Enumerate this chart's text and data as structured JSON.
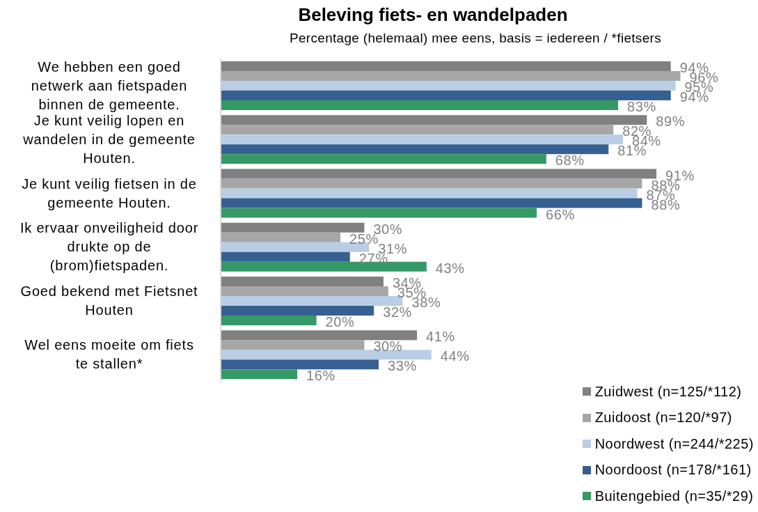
{
  "chart_data": {
    "type": "bar",
    "orientation": "horizontal",
    "title": "Beleving fiets- en wandelpaden",
    "subtitle": "Percentage (helemaal) mee eens, basis = iedereen / *fietsers",
    "categories": [
      "We hebben een goed netwerk aan fietspaden binnen de gemeente.",
      "Je kunt veilig lopen en wandelen in de gemeente Houten.",
      "Je kunt veilig fietsen in de gemeente Houten.",
      "Ik ervaar onveiligheid door drukte op de (brom)fietspaden.",
      "Goed bekend met Fietsnet Houten",
      "Wel eens moeite om fiets te stallen*"
    ],
    "series": [
      {
        "name": "Zuidwest (n=125/*112)",
        "color": "#808080",
        "values": [
          94,
          89,
          91,
          30,
          34,
          41
        ],
        "value_labels": [
          "94%",
          "89%",
          "91%",
          "30%",
          "34%",
          "41%"
        ]
      },
      {
        "name": "Zuidoost (n=120/*97)",
        "color": "#a6a6a6",
        "values": [
          96,
          82,
          88,
          25,
          35,
          30
        ],
        "value_labels": [
          "96%",
          "82%",
          "88%",
          "25%",
          "35%",
          "30%"
        ]
      },
      {
        "name": "Noordwest (n=244/*225)",
        "color": "#b9cde5",
        "values": [
          95,
          84,
          87,
          31,
          38,
          44
        ],
        "value_labels": [
          "95%",
          "84%",
          "87%",
          "31%",
          "38%",
          "44%"
        ]
      },
      {
        "name": "Noordoost (n=178/*161)",
        "color": "#376092",
        "values": [
          94,
          81,
          88,
          27,
          32,
          33
        ],
        "value_labels": [
          "94%",
          "81%",
          "88%",
          "27%",
          "32%",
          "33%"
        ]
      },
      {
        "name": "Buitengebied (n=35/*29)",
        "color": "#359966",
        "values": [
          83,
          68,
          66,
          43,
          20,
          16
        ],
        "value_labels": [
          "83%",
          "68%",
          "66%",
          "43%",
          "20%",
          "16%"
        ]
      }
    ],
    "tick_labels": "y",
    "legend": "bottom right"
  }
}
